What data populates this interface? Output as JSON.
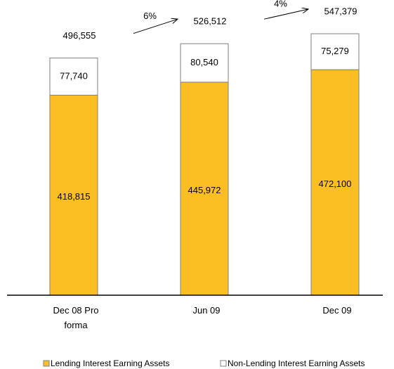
{
  "chart_data": {
    "type": "stacked_bar",
    "categories": [
      "Dec 08 Pro forma",
      "Jun 09",
      "Dec 09"
    ],
    "series": [
      {
        "name": "Lending Interest Earning Assets",
        "color": "#fbbf24",
        "values": [
          418815,
          445972,
          472100
        ],
        "value_labels": [
          "418,815",
          "445,972",
          "472,100"
        ]
      },
      {
        "name": "Non-Lending Interest Earning Assets",
        "color": "#ffffff",
        "values": [
          77740,
          80540,
          75279
        ],
        "value_labels": [
          "77,740",
          "80,540",
          "75,279"
        ]
      }
    ],
    "totals": [
      496555,
      526512,
      547379
    ],
    "total_labels": [
      "496,555",
      "526,512",
      "547,379"
    ],
    "growth": [
      6,
      4
    ],
    "growth_labels": [
      "6%",
      "4%"
    ]
  }
}
